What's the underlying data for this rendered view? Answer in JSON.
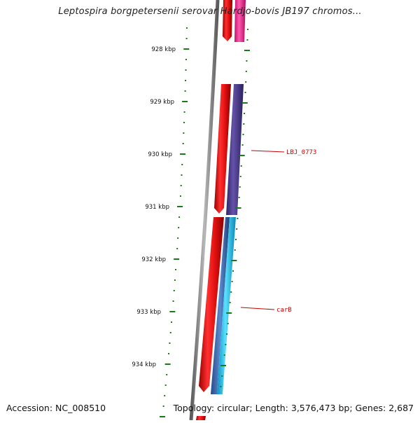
{
  "title": "Leptospira borgpetersenii serovar Hardjo-bovis JB197 chromos...",
  "footer": {
    "accession": "Accession: NC_008510",
    "summary": "Topology: circular; Length: 3,576,473 bp; Genes: 2,687"
  },
  "ruler": {
    "labels": [
      "928 kbp",
      "929 kbp",
      "930 kbp",
      "931 kbp",
      "932 kbp",
      "933 kbp",
      "934 kbp"
    ]
  },
  "gene_labels": [
    "LBJ_0773",
    "carB"
  ],
  "colors": {
    "backbone": "#8a8a8a",
    "forward_gene": "#ee1111",
    "pink_gene": "#ff3399",
    "purple_gene": "#4b3a8c",
    "cyan_gene": "#19c3ee",
    "blue_gene": "#3a6ab0",
    "tick": "#1a7a1a",
    "label_line": "#cc0000"
  }
}
